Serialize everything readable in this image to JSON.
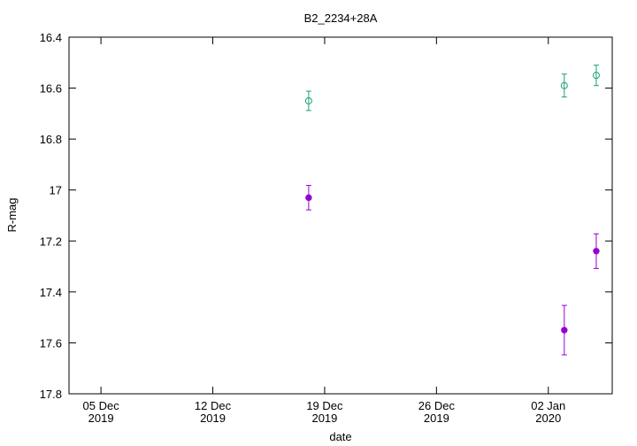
{
  "chart_data": {
    "type": "scatter",
    "title": "B2_2234+28A",
    "x_label": "date",
    "y_label": "R-mag",
    "x": [
      "2019-12-18",
      "2020-01-03",
      "2020-01-05"
    ],
    "series": [
      {
        "color": "#1a9e77",
        "marker": "open-circle",
        "values": [
          16.65,
          16.59,
          16.55
        ],
        "errors": [
          0.038,
          0.045,
          0.04
        ]
      },
      {
        "color": "#9400d3",
        "marker": "filled-circle",
        "values": [
          17.03,
          17.55,
          17.24
        ],
        "errors": [
          0.048,
          0.097,
          0.068
        ]
      }
    ],
    "xlim": [
      "2019-12-03",
      "2020-01-06"
    ],
    "xticks": [
      {
        "value": "2019-12-05",
        "label": "05 Dec\n2019"
      },
      {
        "value": "2019-12-12",
        "label": "12 Dec\n2019"
      },
      {
        "value": "2019-12-19",
        "label": "19 Dec\n2019"
      },
      {
        "value": "2019-12-26",
        "label": "26 Dec\n2019"
      },
      {
        "value": "2020-01-02",
        "label": "02 Jan\n2020"
      }
    ],
    "ylim": [
      17.8,
      16.4
    ],
    "yticks": [
      16.4,
      16.6,
      16.8,
      17,
      17.2,
      17.4,
      17.6,
      17.8
    ],
    "grid": false
  }
}
